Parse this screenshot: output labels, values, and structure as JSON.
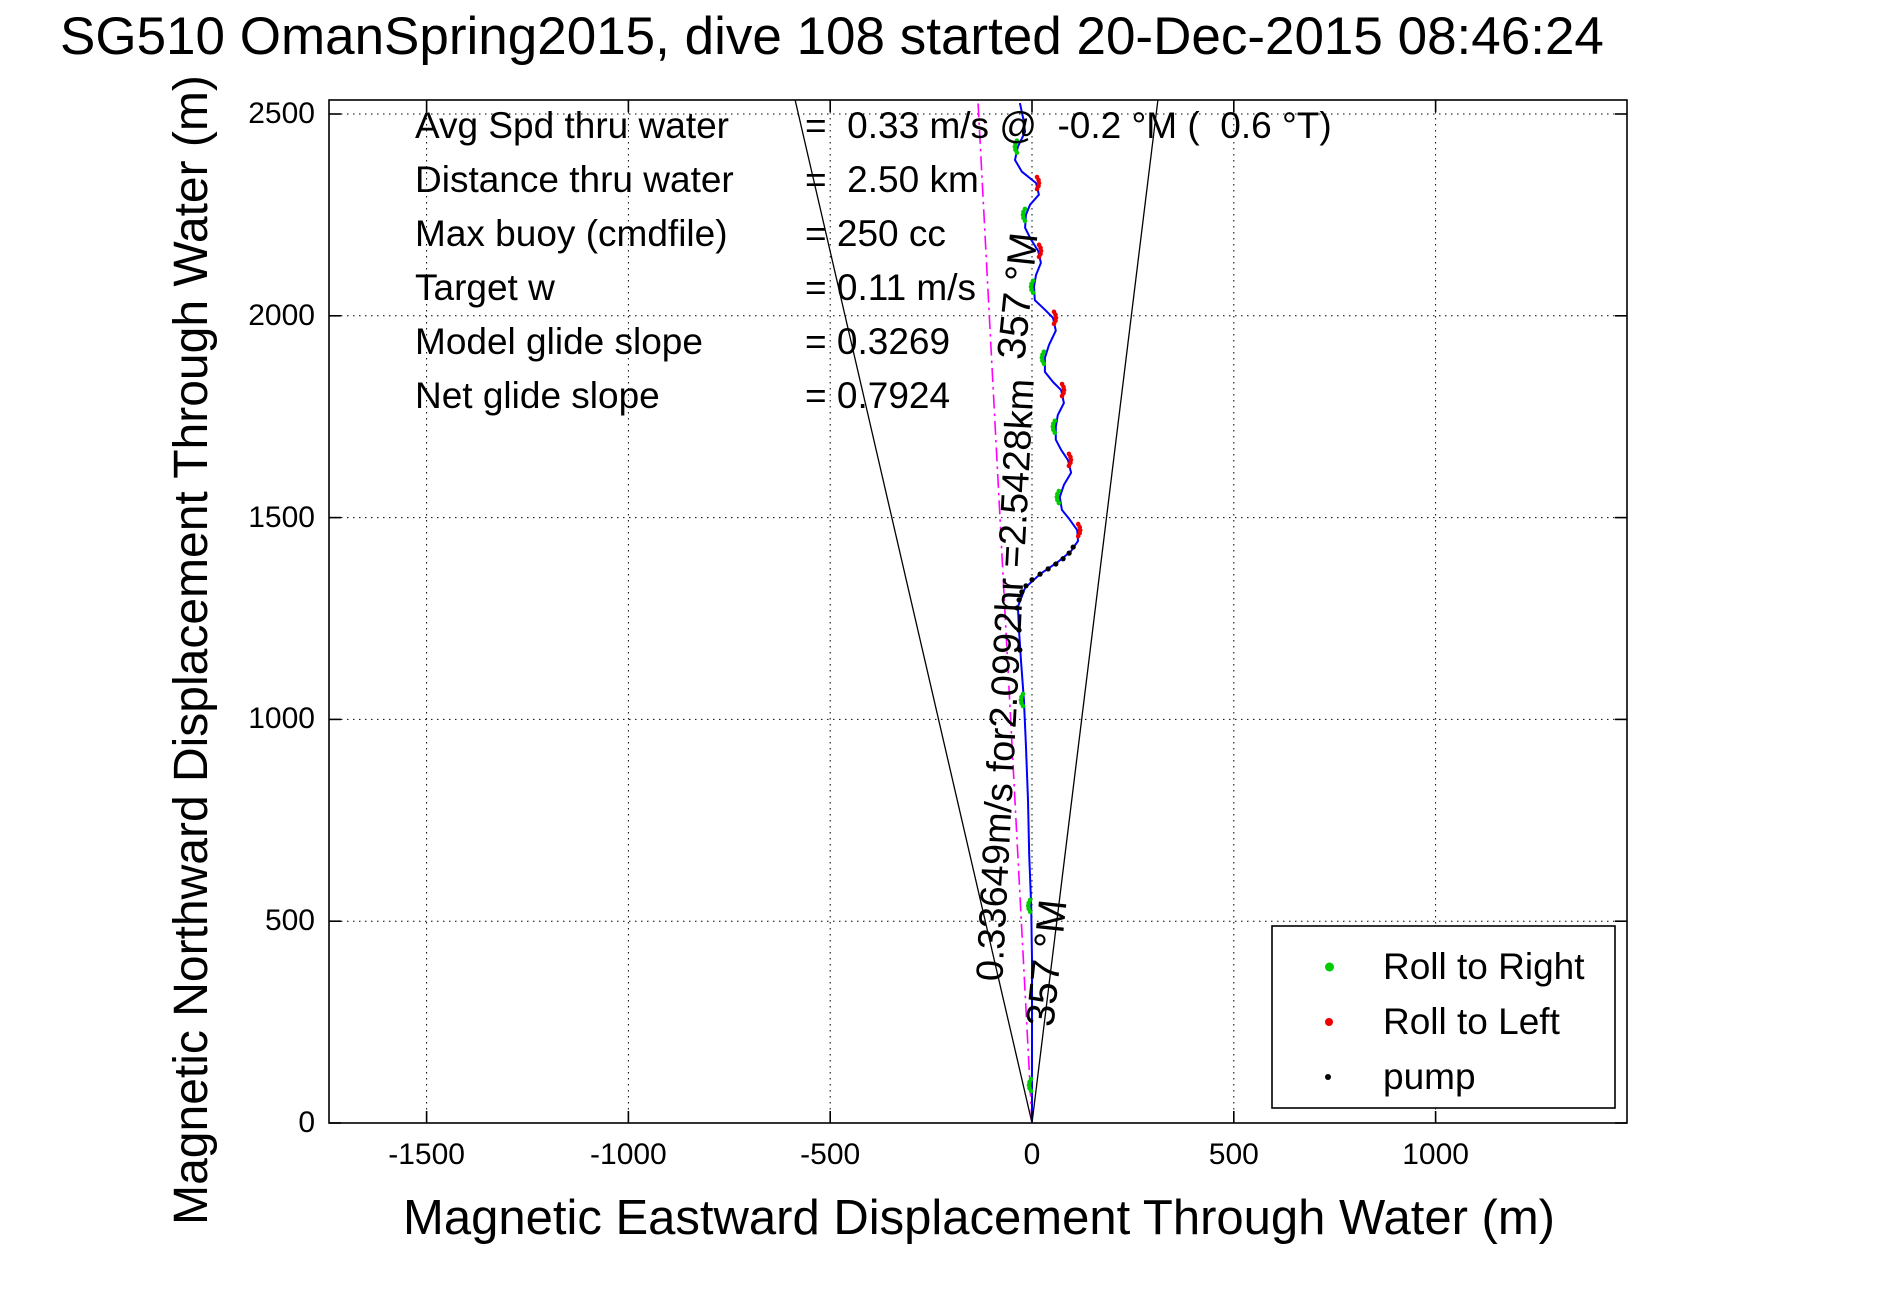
{
  "title": "SG510 OmanSpring2015, dive 108 started 20-Dec-2015 08:46:24",
  "annotations": {
    "rows": [
      {
        "label": "Avg Spd thru water",
        "value": "=  0.33 m/s @  -0.2 °M (  0.6 °T)"
      },
      {
        "label": "Distance thru water",
        "value": "=  2.50 km"
      },
      {
        "label": "Max buoy (cmdfile)",
        "value": "= 250 cc"
      },
      {
        "label": "Target w",
        "value": "= 0.11 m/s"
      },
      {
        "label": "Model glide slope",
        "value": "= 0.3269"
      },
      {
        "label": "Net glide slope",
        "value": "= 0.7924"
      }
    ],
    "bearing_top": "357 °M",
    "bearing_bottom": "357 °M",
    "track_line_label": "0.33649m/s for2.0992hr =2.5428km"
  },
  "legend": {
    "position": "lower right",
    "items": [
      {
        "label": "Roll to Right",
        "color": "#00cc00",
        "dot": 9
      },
      {
        "label": "Roll to Left",
        "color": "#ee0000",
        "dot": 8
      },
      {
        "label": "pump",
        "color": "#000000",
        "dot": 6
      }
    ]
  },
  "chart_data": {
    "type": "line",
    "title": "SG510 OmanSpring2015, dive 108 started 20-Dec-2015 08:46:24",
    "xlabel": "Magnetic Eastward Displacement Through Water (m)",
    "ylabel": "Magnetic Northward Displacement Through Water (m)",
    "xlim": [
      -1742,
      1474
    ],
    "ylim": [
      0,
      2535
    ],
    "xticks": [
      -1500,
      -1000,
      -500,
      0,
      500,
      1000
    ],
    "yticks": [
      0,
      500,
      1000,
      1500,
      2000,
      2500
    ],
    "grid": "dotted",
    "legend_position": "lower right",
    "series": [
      {
        "name": "bearing-cone-left",
        "color": "#000000",
        "style": "solid",
        "width": 1.3,
        "points": [
          [
            0,
            0
          ],
          [
            -587,
            2535
          ]
        ]
      },
      {
        "name": "bearing-cone-right",
        "color": "#000000",
        "style": "solid",
        "width": 1.3,
        "points": [
          [
            0,
            0
          ],
          [
            312,
            2535
          ]
        ]
      },
      {
        "name": "desired-track-357M",
        "color": "#ff00ff",
        "style": "dash-dot",
        "width": 1.6,
        "points": [
          [
            0,
            0
          ],
          [
            -134,
            2535
          ]
        ]
      },
      {
        "name": "track-through-water",
        "color": "#0000ff",
        "style": "solid",
        "width": 2,
        "points": [
          [
            0,
            5
          ],
          [
            0,
            94
          ],
          [
            0,
            255
          ],
          [
            0,
            404
          ],
          [
            -2,
            538
          ],
          [
            -7,
            664
          ],
          [
            -10,
            800
          ],
          [
            -15,
            937
          ],
          [
            -20,
            1048
          ],
          [
            -27,
            1142
          ],
          [
            -32,
            1217
          ],
          [
            -35,
            1279
          ],
          [
            -17,
            1326
          ],
          [
            20,
            1360
          ],
          [
            64,
            1390
          ],
          [
            97,
            1417
          ],
          [
            114,
            1442
          ],
          [
            112,
            1469
          ],
          [
            92,
            1497
          ],
          [
            74,
            1519
          ],
          [
            69,
            1551
          ],
          [
            79,
            1581
          ],
          [
            97,
            1611
          ],
          [
            89,
            1643
          ],
          [
            72,
            1668
          ],
          [
            59,
            1693
          ],
          [
            59,
            1725
          ],
          [
            64,
            1754
          ],
          [
            79,
            1784
          ],
          [
            72,
            1816
          ],
          [
            52,
            1836
          ],
          [
            32,
            1861
          ],
          [
            32,
            1896
          ],
          [
            42,
            1928
          ],
          [
            59,
            1963
          ],
          [
            52,
            1995
          ],
          [
            32,
            2015
          ],
          [
            7,
            2039
          ],
          [
            5,
            2072
          ],
          [
            10,
            2101
          ],
          [
            22,
            2131
          ],
          [
            15,
            2161
          ],
          [
            -2,
            2188
          ],
          [
            -17,
            2218
          ],
          [
            -15,
            2250
          ],
          [
            -5,
            2275
          ],
          [
            17,
            2300
          ],
          [
            10,
            2329
          ],
          [
            -25,
            2357
          ],
          [
            -42,
            2386
          ],
          [
            -35,
            2419
          ],
          [
            -17,
            2456
          ],
          [
            -22,
            2490
          ],
          [
            -30,
            2527
          ]
        ]
      }
    ],
    "markers": [
      {
        "name": "Roll to Right",
        "color": "#00cc00",
        "side": -1,
        "points": [
          [
            -35,
            2419
          ],
          [
            -15,
            2250
          ],
          [
            5,
            2072
          ],
          [
            32,
            1896
          ],
          [
            59,
            1725
          ],
          [
            69,
            1551
          ],
          [
            -20,
            1048
          ],
          [
            -2,
            538
          ],
          [
            0,
            94
          ]
        ]
      },
      {
        "name": "Roll to Left",
        "color": "#ee0000",
        "side": 1,
        "points": [
          [
            10,
            2329
          ],
          [
            15,
            2161
          ],
          [
            52,
            1995
          ],
          [
            72,
            1816
          ],
          [
            89,
            1643
          ],
          [
            112,
            1469
          ]
        ]
      },
      {
        "name": "pump",
        "color": "#000000",
        "side": 0,
        "points": [
          [
            -37,
            1276
          ],
          [
            -32,
            1296
          ],
          [
            -25,
            1316
          ],
          [
            -15,
            1331
          ],
          [
            0,
            1346
          ],
          [
            20,
            1360
          ],
          [
            40,
            1373
          ],
          [
            59,
            1385
          ],
          [
            77,
            1398
          ],
          [
            92,
            1412
          ],
          [
            102,
            1427
          ],
          [
            -30,
            1172
          ],
          [
            -32,
            1221
          ]
        ]
      }
    ]
  }
}
